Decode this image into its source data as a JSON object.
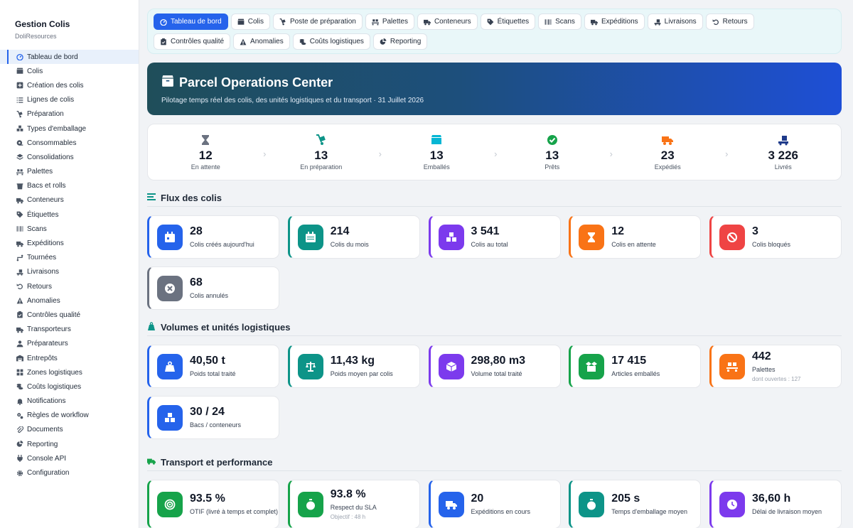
{
  "app": {
    "title": "Gestion Colis",
    "subtitle": "DoliResources"
  },
  "sidebar": {
    "items": [
      {
        "label": "Tableau de bord",
        "icon": "gauge-icon",
        "active": true
      },
      {
        "label": "Colis",
        "icon": "box-icon"
      },
      {
        "label": "Création des colis",
        "icon": "plus-square-icon"
      },
      {
        "label": "Lignes de colis",
        "icon": "list-icon"
      },
      {
        "label": "Préparation",
        "icon": "dolly-icon"
      },
      {
        "label": "Types d'emballage",
        "icon": "boxes-icon"
      },
      {
        "label": "Consommables",
        "icon": "tape-icon"
      },
      {
        "label": "Consolidations",
        "icon": "layers-icon"
      },
      {
        "label": "Palettes",
        "icon": "pallet-icon"
      },
      {
        "label": "Bacs et rolls",
        "icon": "bin-icon"
      },
      {
        "label": "Conteneurs",
        "icon": "truck-icon"
      },
      {
        "label": "Étiquettes",
        "icon": "tag-icon"
      },
      {
        "label": "Scans",
        "icon": "barcode-icon"
      },
      {
        "label": "Expéditions",
        "icon": "shipping-icon"
      },
      {
        "label": "Tournées",
        "icon": "route-icon"
      },
      {
        "label": "Livraisons",
        "icon": "delivery-icon"
      },
      {
        "label": "Retours",
        "icon": "undo-icon"
      },
      {
        "label": "Anomalies",
        "icon": "warning-icon"
      },
      {
        "label": "Contrôles qualité",
        "icon": "clipboard-check-icon"
      },
      {
        "label": "Transporteurs",
        "icon": "truck-icon"
      },
      {
        "label": "Préparateurs",
        "icon": "user-icon"
      },
      {
        "label": "Entrepôts",
        "icon": "warehouse-icon"
      },
      {
        "label": "Zones logistiques",
        "icon": "grid-icon"
      },
      {
        "label": "Coûts logistiques",
        "icon": "coins-icon"
      },
      {
        "label": "Notifications",
        "icon": "bell-icon"
      },
      {
        "label": "Règles de workflow",
        "icon": "cogs-icon"
      },
      {
        "label": "Documents",
        "icon": "paperclip-icon"
      },
      {
        "label": "Reporting",
        "icon": "chart-pie-icon"
      },
      {
        "label": "Console API",
        "icon": "plug-icon"
      },
      {
        "label": "Configuration",
        "icon": "gear-icon"
      }
    ]
  },
  "tabs": {
    "row1": [
      {
        "label": "Tableau de bord",
        "icon": "gauge-icon",
        "active": true
      },
      {
        "label": "Colis",
        "icon": "box-icon"
      },
      {
        "label": "Poste de préparation",
        "icon": "dolly-icon"
      },
      {
        "label": "Palettes",
        "icon": "pallet-icon"
      },
      {
        "label": "Conteneurs",
        "icon": "truck-icon"
      },
      {
        "label": "Étiquettes",
        "icon": "tag-icon"
      },
      {
        "label": "Scans",
        "icon": "barcode-icon"
      },
      {
        "label": "Expéditions",
        "icon": "shipping-icon"
      },
      {
        "label": "Livraisons",
        "icon": "delivery-icon"
      },
      {
        "label": "Retours",
        "icon": "undo-icon"
      }
    ],
    "row2": [
      {
        "label": "Contrôles qualité",
        "icon": "clipboard-check-icon"
      },
      {
        "label": "Anomalies",
        "icon": "warning-icon"
      },
      {
        "label": "Coûts logistiques",
        "icon": "coins-icon"
      },
      {
        "label": "Reporting",
        "icon": "chart-pie-icon"
      }
    ]
  },
  "hero": {
    "title": "Parcel Operations Center",
    "subtitle": "Pilotage temps réel des colis, des unités logistiques et du transport · 31 Juillet 2026"
  },
  "pipeline": [
    {
      "value": "12",
      "label": "En attente",
      "icon": "hourglass-icon",
      "color": "#6b7280"
    },
    {
      "value": "13",
      "label": "En préparation",
      "icon": "dolly-icon",
      "color": "#0d9488"
    },
    {
      "value": "13",
      "label": "Emballés",
      "icon": "box-icon",
      "color": "#06b6d4"
    },
    {
      "value": "13",
      "label": "Prêts",
      "icon": "check-circle-icon",
      "color": "#16a34a"
    },
    {
      "value": "23",
      "label": "Expédiés",
      "icon": "shipping-icon",
      "color": "#f97316"
    },
    {
      "value": "3 226",
      "label": "Livrés",
      "icon": "delivery-icon",
      "color": "#1e3a8a"
    }
  ],
  "sections": {
    "flux": "Flux des colis",
    "volumes": "Volumes et unités logistiques",
    "transport": "Transport et performance"
  },
  "flux_kpis": [
    {
      "value": "28",
      "label": "Colis créés aujourd'hui",
      "icon": "calendar-day-icon",
      "color": "#2563eb"
    },
    {
      "value": "214",
      "label": "Colis du mois",
      "icon": "calendar-icon",
      "color": "#0d9488"
    },
    {
      "value": "3 541",
      "label": "Colis au total",
      "icon": "boxes-icon",
      "color": "#7c3aed"
    },
    {
      "value": "12",
      "label": "Colis en attente",
      "icon": "hourglass-icon",
      "color": "#f97316"
    },
    {
      "value": "3",
      "label": "Colis bloqués",
      "icon": "ban-icon",
      "color": "#ef4444"
    },
    {
      "value": "68",
      "label": "Colis annulés",
      "icon": "x-circle-icon",
      "color": "#6b7280"
    }
  ],
  "volume_kpis": [
    {
      "value": "40,50 t",
      "label": "Poids total traité",
      "icon": "weight-icon",
      "color": "#2563eb"
    },
    {
      "value": "11,43 kg",
      "label": "Poids moyen par colis",
      "icon": "scale-icon",
      "color": "#0d9488"
    },
    {
      "value": "298,80 m3",
      "label": "Volume total traité",
      "icon": "cube-icon",
      "color": "#7c3aed"
    },
    {
      "value": "17 415",
      "label": "Articles emballés",
      "icon": "box-open-icon",
      "color": "#16a34a"
    },
    {
      "value": "442",
      "label": "Palettes",
      "note": "dont ouvertes : 127",
      "icon": "pallet-icon",
      "color": "#f97316"
    },
    {
      "value": "30 / 24",
      "label": "Bacs / conteneurs",
      "icon": "boxes-icon",
      "color": "#2563eb"
    }
  ],
  "transport_kpis": [
    {
      "value": "93.5 %",
      "label": "OTIF (livré à temps et complet)",
      "icon": "bullseye-icon",
      "color": "#16a34a"
    },
    {
      "value": "93.8 %",
      "label": "Respect du SLA",
      "note": "Objectif : 48 h",
      "icon": "stopwatch-icon",
      "color": "#16a34a"
    },
    {
      "value": "20",
      "label": "Expéditions en cours",
      "icon": "shipping-icon",
      "color": "#2563eb"
    },
    {
      "value": "205 s",
      "label": "Temps d'emballage moyen",
      "icon": "stopwatch-icon",
      "color": "#0d9488"
    },
    {
      "value": "36,60 h",
      "label": "Délai de livraison moyen",
      "icon": "clock-icon",
      "color": "#7c3aed"
    }
  ]
}
